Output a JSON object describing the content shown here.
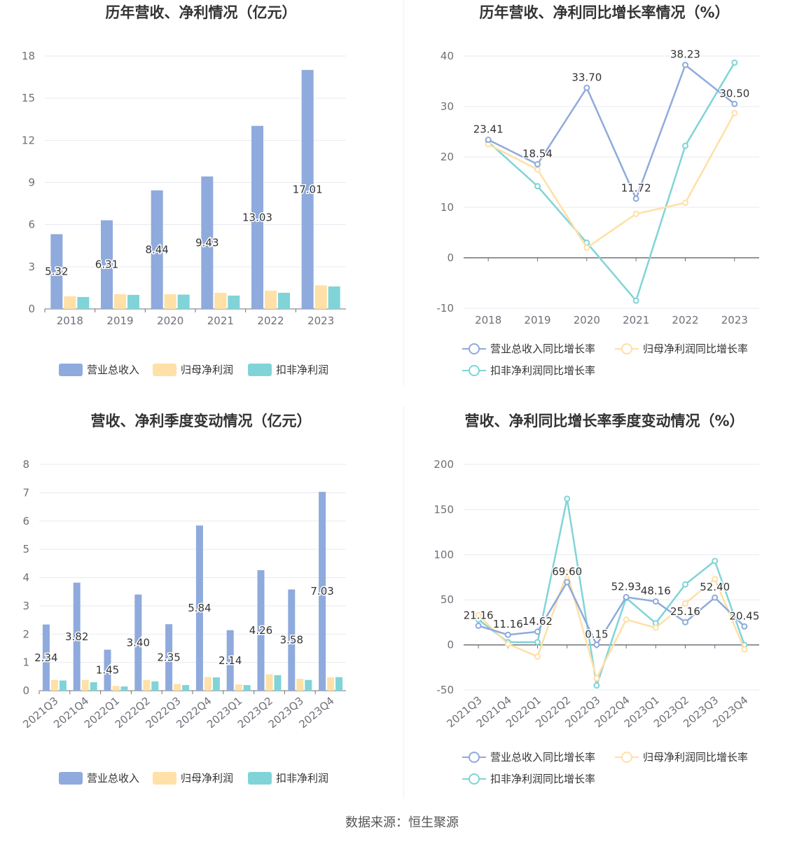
{
  "colors": {
    "revenue": "#8faadc",
    "parent": "#ffe0a6",
    "deducted": "#80d4d8",
    "grid": "#e8eaf0",
    "axis": "#6e7079"
  },
  "legends": {
    "bar": [
      "营业总收入",
      "归母净利润",
      "扣非净利润"
    ],
    "line": [
      "营业总收入同比增长率",
      "归母净利润同比增长率",
      "扣非净利润同比增长率"
    ]
  },
  "footer": "数据来源：恒生聚源",
  "chart_data": [
    {
      "type": "bar",
      "title": "历年营收、净利情况（亿元）",
      "categories": [
        "2018",
        "2019",
        "2020",
        "2021",
        "2022",
        "2023"
      ],
      "series": [
        {
          "name": "营业总收入",
          "values": [
            5.32,
            6.31,
            8.44,
            9.43,
            13.03,
            17.01
          ],
          "labels": [
            "5.32",
            "6.31",
            "8.44",
            "9.43",
            "13.03",
            "17.01"
          ]
        },
        {
          "name": "归母净利润",
          "values": [
            0.9,
            1.05,
            1.05,
            1.15,
            1.3,
            1.68
          ]
        },
        {
          "name": "扣非净利润",
          "values": [
            0.85,
            1.0,
            1.02,
            0.95,
            1.15,
            1.6
          ]
        }
      ],
      "yticks": [
        "0",
        "3",
        "6",
        "9",
        "12",
        "15",
        "18"
      ],
      "ylim": [
        0,
        18
      ],
      "legend": "bottom"
    },
    {
      "type": "line",
      "title": "历年营收、净利同比增长率情况（%）",
      "categories": [
        "2018",
        "2019",
        "2020",
        "2021",
        "2022",
        "2023"
      ],
      "series": [
        {
          "name": "营业总收入同比增长率",
          "values": [
            23.41,
            18.54,
            33.7,
            11.72,
            38.23,
            30.5
          ],
          "labels": [
            "23.41",
            "18.54",
            "33.70",
            "11.72",
            "38.23",
            "30.50"
          ]
        },
        {
          "name": "归母净利润同比增长率",
          "values": [
            22.5,
            17.5,
            2.0,
            8.7,
            10.9,
            28.7
          ]
        },
        {
          "name": "扣非净利润同比增长率",
          "values": [
            23.0,
            14.2,
            3.0,
            -8.5,
            22.2,
            38.7
          ]
        }
      ],
      "yticks": [
        "-10",
        "0",
        "10",
        "20",
        "30",
        "40"
      ],
      "ylim": [
        -10,
        40
      ],
      "legend": "bottom"
    },
    {
      "type": "bar",
      "title": "营收、净利季度变动情况（亿元）",
      "categories": [
        "2021Q3",
        "2021Q4",
        "2022Q1",
        "2022Q2",
        "2022Q3",
        "2022Q4",
        "2023Q1",
        "2023Q2",
        "2023Q3",
        "2023Q4"
      ],
      "series": [
        {
          "name": "营业总收入",
          "values": [
            2.34,
            3.82,
            1.45,
            3.4,
            2.35,
            5.84,
            2.14,
            4.26,
            3.58,
            7.03
          ],
          "labels": [
            "2.34",
            "3.82",
            "1.45",
            "3.40",
            "2.35",
            "5.84",
            "2.14",
            "4.26",
            "3.58",
            "7.03"
          ]
        },
        {
          "name": "归母净利润",
          "values": [
            0.38,
            0.38,
            0.17,
            0.38,
            0.24,
            0.48,
            0.22,
            0.58,
            0.42,
            0.47
          ]
        },
        {
          "name": "扣非净利润",
          "values": [
            0.36,
            0.3,
            0.15,
            0.33,
            0.2,
            0.47,
            0.2,
            0.55,
            0.38,
            0.48
          ]
        }
      ],
      "yticks": [
        "0",
        "1",
        "2",
        "3",
        "4",
        "5",
        "6",
        "7",
        "8"
      ],
      "ylim": [
        0,
        8
      ],
      "legend": "bottom"
    },
    {
      "type": "line",
      "title": "营收、净利同比增长率季度变动情况（%）",
      "categories": [
        "2021Q3",
        "2021Q4",
        "2022Q1",
        "2022Q2",
        "2022Q3",
        "2022Q4",
        "2023Q1",
        "2023Q2",
        "2023Q3",
        "2023Q4"
      ],
      "series": [
        {
          "name": "营业总收入同比增长率",
          "values": [
            21.16,
            11.16,
            14.62,
            69.6,
            0.15,
            52.93,
            48.16,
            25.16,
            52.4,
            20.45
          ],
          "labels": [
            "21.16",
            "11.16",
            "14.62",
            "69.60",
            "0.15",
            "52.93",
            "48.16",
            "25.16",
            "52.40",
            "20.45"
          ]
        },
        {
          "name": "归母净利润同比增长率",
          "values": [
            33,
            1,
            -13,
            80,
            -37,
            28,
            19,
            46,
            73,
            -5
          ]
        },
        {
          "name": "扣非净利润同比增长率",
          "values": [
            28,
            3,
            3,
            162,
            -45,
            52,
            24,
            67,
            93,
            0
          ]
        }
      ],
      "yticks": [
        "-50",
        "0",
        "50",
        "100",
        "150",
        "200"
      ],
      "ylim": [
        -50,
        200
      ],
      "legend": "bottom"
    }
  ]
}
